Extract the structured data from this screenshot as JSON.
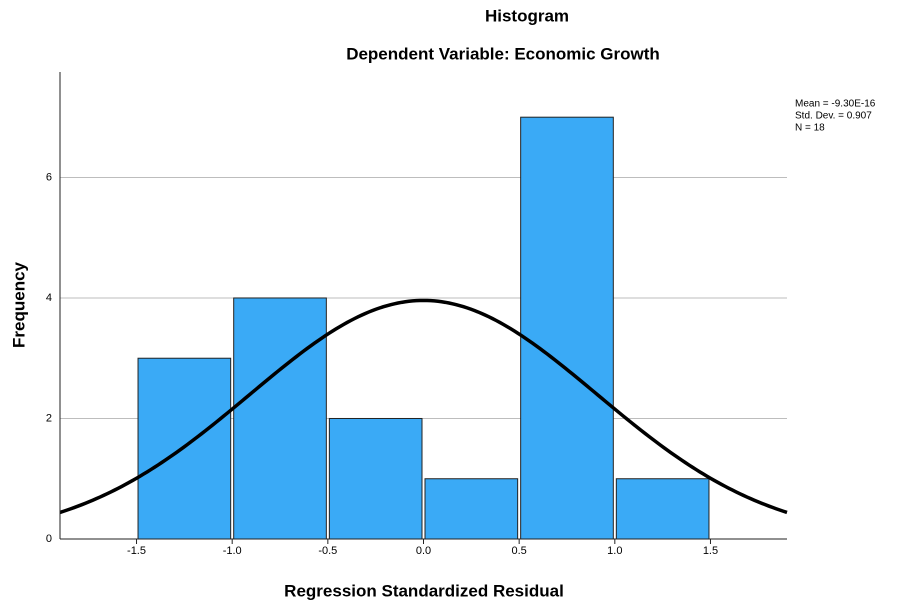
{
  "chart_data": {
    "type": "histogram",
    "title": "Histogram",
    "subtitle": "Dependent Variable: Economic Growth",
    "x_label": "Regression Standardized Residual",
    "y_label": "Frequency",
    "bins": [
      -1.5,
      -1.0,
      -0.5,
      0,
      0.5,
      1.0,
      1.5
    ],
    "values": [
      3,
      4,
      2,
      1,
      7,
      1
    ],
    "color": "#3aaaf6",
    "xlim": [
      -1.9,
      1.9
    ],
    "xticks": [
      -1.5,
      {
        "value": -1,
        "label": "-1.0"
      },
      -0.5,
      {
        "value": 0,
        "label": "0.0"
      },
      0.5,
      {
        "value": 1,
        "label": "1.0"
      },
      1.5
    ],
    "ylim": [
      0,
      7.75
    ],
    "yticks": [
      0,
      2,
      4,
      6
    ],
    "grid": true,
    "stats": {
      "mean": {
        "value": -9.3e-16,
        "label": "Mean = -9.30E-16"
      },
      "std_dev": {
        "value": 0.907,
        "label": "Std. Dev. = 0.907"
      },
      "n": {
        "value": 18,
        "label": "N = 18"
      }
    },
    "curve_color": "#000000"
  }
}
